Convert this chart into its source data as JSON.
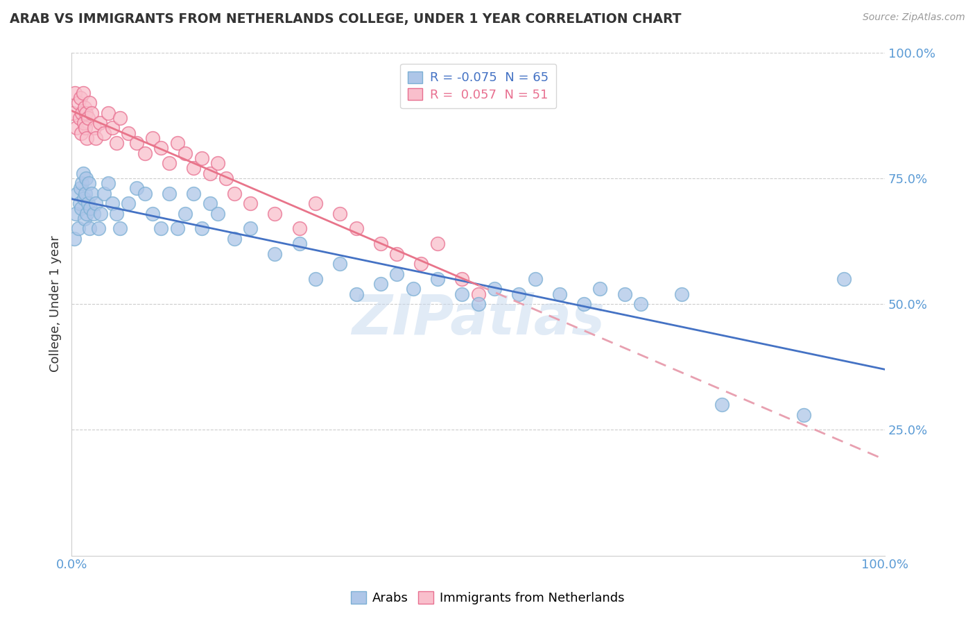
{
  "title": "ARAB VS IMMIGRANTS FROM NETHERLANDS COLLEGE, UNDER 1 YEAR CORRELATION CHART",
  "source": "Source: ZipAtlas.com",
  "ylabel_label": "College, Under 1 year",
  "watermark": "ZIPatlas",
  "xmin": 0.0,
  "xmax": 100.0,
  "ymin": 0.0,
  "ymax": 100.0,
  "background_color": "#ffffff",
  "grid_color": "#cccccc",
  "title_color": "#333333",
  "axis_tick_color": "#5b9bd5",
  "trend_blue_color": "#4472c4",
  "trend_pink_solid_color": "#e8748a",
  "trend_pink_dash_color": "#e8a0b0",
  "arab_fill": "#aec6e8",
  "arab_edge": "#7bafd4",
  "neth_fill": "#f9bfcc",
  "neth_edge": "#e87090",
  "legend_blue_text_color": "#4472c4",
  "legend_pink_text_color": "#e87090",
  "arab_x": [
    0.3,
    0.5,
    0.7,
    0.8,
    1.0,
    1.1,
    1.2,
    1.3,
    1.4,
    1.5,
    1.6,
    1.7,
    1.8,
    1.9,
    2.0,
    2.1,
    2.2,
    2.3,
    2.5,
    2.7,
    3.0,
    3.3,
    3.6,
    4.0,
    4.5,
    5.0,
    5.5,
    6.0,
    7.0,
    8.0,
    9.0,
    10.0,
    11.0,
    12.0,
    13.0,
    14.0,
    15.0,
    16.0,
    17.0,
    18.0,
    20.0,
    22.0,
    25.0,
    28.0,
    30.0,
    33.0,
    35.0,
    38.0,
    40.0,
    42.0,
    45.0,
    48.0,
    50.0,
    52.0,
    55.0,
    57.0,
    60.0,
    63.0,
    65.0,
    68.0,
    70.0,
    75.0,
    80.0,
    90.0,
    95.0
  ],
  "arab_y": [
    63,
    68,
    72,
    65,
    70,
    73,
    69,
    74,
    76,
    71,
    67,
    72,
    75,
    68,
    70,
    74,
    65,
    69,
    72,
    68,
    70,
    65,
    68,
    72,
    74,
    70,
    68,
    65,
    70,
    73,
    72,
    68,
    65,
    72,
    65,
    68,
    72,
    65,
    70,
    68,
    63,
    65,
    60,
    62,
    55,
    58,
    52,
    54,
    56,
    53,
    55,
    52,
    50,
    53,
    52,
    55,
    52,
    50,
    53,
    52,
    50,
    52,
    30,
    28,
    55
  ],
  "neth_x": [
    0.2,
    0.4,
    0.6,
    0.8,
    1.0,
    1.1,
    1.2,
    1.3,
    1.4,
    1.5,
    1.6,
    1.7,
    1.8,
    1.9,
    2.0,
    2.2,
    2.5,
    2.8,
    3.0,
    3.5,
    4.0,
    4.5,
    5.0,
    5.5,
    6.0,
    7.0,
    8.0,
    9.0,
    10.0,
    11.0,
    12.0,
    13.0,
    14.0,
    15.0,
    16.0,
    17.0,
    18.0,
    19.0,
    20.0,
    22.0,
    25.0,
    28.0,
    30.0,
    33.0,
    35.0,
    38.0,
    40.0,
    43.0,
    45.0,
    48.0,
    50.0
  ],
  "neth_y": [
    88,
    92,
    85,
    90,
    87,
    91,
    84,
    88,
    92,
    86,
    89,
    85,
    88,
    83,
    87,
    90,
    88,
    85,
    83,
    86,
    84,
    88,
    85,
    82,
    87,
    84,
    82,
    80,
    83,
    81,
    78,
    82,
    80,
    77,
    79,
    76,
    78,
    75,
    72,
    70,
    68,
    65,
    70,
    68,
    65,
    62,
    60,
    58,
    62,
    55,
    52
  ]
}
